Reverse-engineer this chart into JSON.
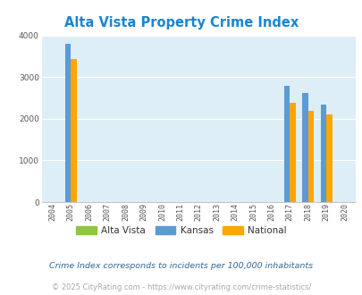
{
  "title": "Alta Vista Property Crime Index",
  "title_color": "#1a85d0",
  "years": [
    2004,
    2005,
    2006,
    2007,
    2008,
    2009,
    2010,
    2011,
    2012,
    2013,
    2014,
    2015,
    2016,
    2017,
    2018,
    2019,
    2020
  ],
  "kansas": {
    "2005": 3800,
    "2017": 2800,
    "2018": 2620,
    "2019": 2330
  },
  "national": {
    "2005": 3430,
    "2017": 2380,
    "2018": 2180,
    "2019": 2100
  },
  "bar_width": 0.32,
  "colors": {
    "alta_vista": "#8dc63f",
    "kansas": "#5b9bd5",
    "national": "#ffa500"
  },
  "ylim": [
    0,
    4000
  ],
  "yticks": [
    0,
    1000,
    2000,
    3000,
    4000
  ],
  "bg_color": "#ddeef6",
  "grid_color": "#ffffff",
  "legend_labels": [
    "Alta Vista",
    "Kansas",
    "National"
  ],
  "footnote1": "Crime Index corresponds to incidents per 100,000 inhabitants",
  "footnote2": "© 2025 CityRating.com - https://www.cityrating.com/crime-statistics/",
  "footnote1_color": "#336699",
  "footnote2_color": "#aaaaaa"
}
